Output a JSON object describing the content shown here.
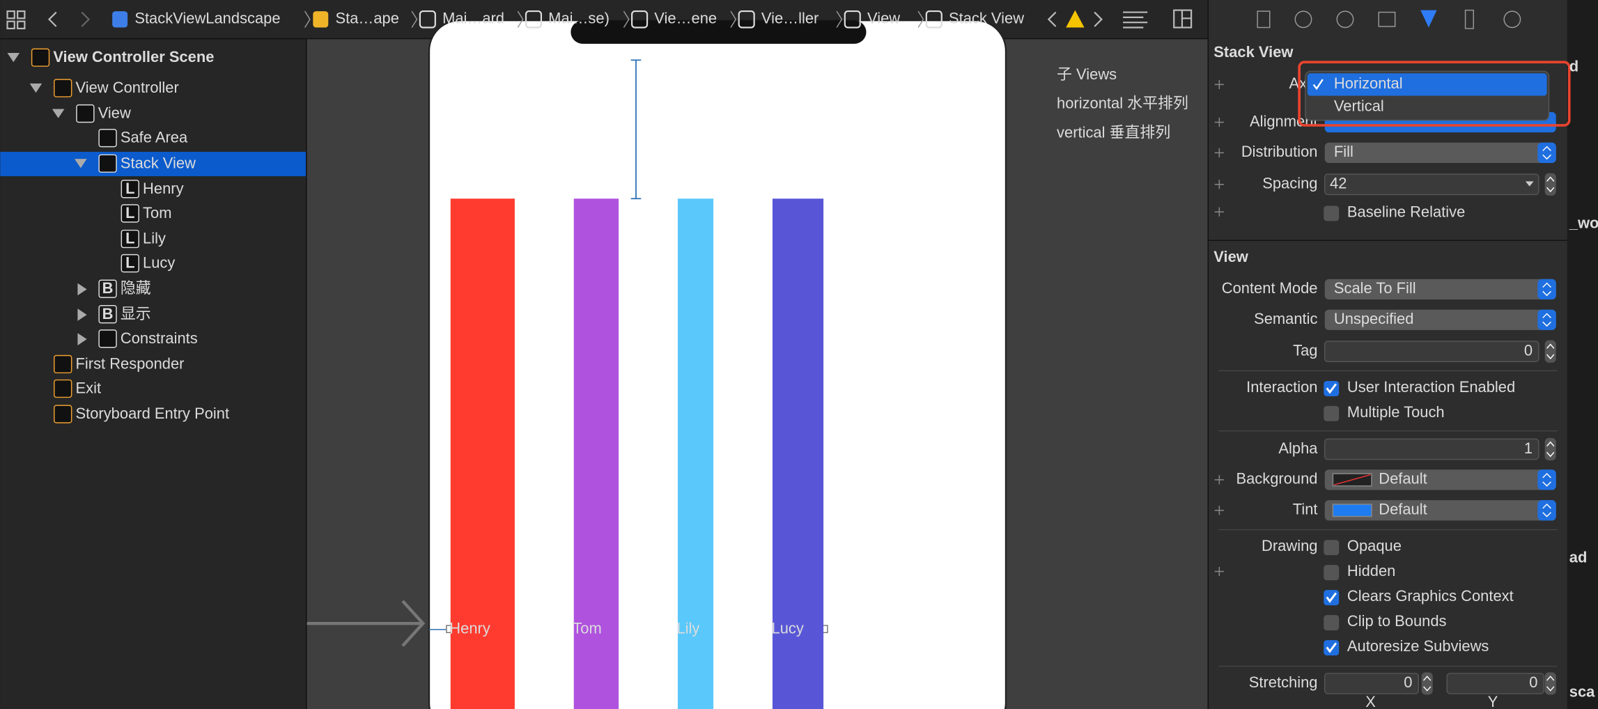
{
  "breadcrumb": [
    "StackViewLandscape",
    "Sta…ape",
    "Mai…ard",
    "Mai…se)",
    "Vie…ene",
    "Vie…ller",
    "View",
    "Stack View"
  ],
  "outline": [
    {
      "label": "View Controller Scene",
      "icon": ""
    },
    {
      "label": "View Controller",
      "icon": ""
    },
    {
      "label": "View",
      "icon": ""
    },
    {
      "label": "Safe Area",
      "icon": ""
    },
    {
      "label": "Stack View",
      "icon": ""
    },
    {
      "label": "Henry",
      "icon": "L"
    },
    {
      "label": "Tom",
      "icon": "L"
    },
    {
      "label": "Lily",
      "icon": "L"
    },
    {
      "label": "Lucy",
      "icon": "L"
    },
    {
      "label": "隐藏",
      "icon": "B"
    },
    {
      "label": "显示",
      "icon": "B"
    },
    {
      "label": "Constraints",
      "icon": ""
    },
    {
      "label": "First Responder",
      "icon": ""
    },
    {
      "label": "Exit",
      "icon": ""
    },
    {
      "label": "Storyboard Entry Point",
      "icon": ""
    }
  ],
  "canvas": {
    "labels": [
      "Henry",
      "Tom",
      "Lily",
      "Lucy"
    ]
  },
  "annotation": [
    "子 Views",
    "horizontal 水平排列",
    "vertical 垂直排列"
  ],
  "inspector": {
    "stack_header": "Stack View",
    "axis_label": "Ax",
    "alignment_label": "Alignment",
    "axis_menu": [
      "Horizontal",
      "Vertical"
    ],
    "distribution": {
      "label": "Distribution",
      "value": "Fill"
    },
    "spacing": {
      "label": "Spacing",
      "value": "42"
    },
    "baseline": {
      "label": "Baseline Relative",
      "checked": false
    },
    "view_header": "View",
    "content_mode": {
      "label": "Content Mode",
      "value": "Scale To Fill"
    },
    "semantic": {
      "label": "Semantic",
      "value": "Unspecified"
    },
    "tag": {
      "label": "Tag",
      "value": "0"
    },
    "interaction": {
      "label": "Interaction",
      "options": [
        {
          "label": "User Interaction Enabled",
          "checked": true
        },
        {
          "label": "Multiple Touch",
          "checked": false
        }
      ]
    },
    "alpha": {
      "label": "Alpha",
      "value": "1"
    },
    "background": {
      "label": "Background",
      "value": "Default"
    },
    "tint": {
      "label": "Tint",
      "value": "Default"
    },
    "drawing": {
      "label": "Drawing",
      "options": [
        {
          "label": "Opaque",
          "checked": false
        },
        {
          "label": "Hidden",
          "checked": false
        },
        {
          "label": "Clears Graphics Context",
          "checked": true
        },
        {
          "label": "Clip to Bounds",
          "checked": false
        },
        {
          "label": "Autoresize Subviews",
          "checked": true
        }
      ]
    },
    "stretching": {
      "label": "Stretching",
      "x": "0",
      "y": "0",
      "x_caption": "X",
      "y_caption": "Y"
    }
  },
  "edge_fragments": [
    "d",
    "_wo",
    "ad",
    "sca"
  ]
}
